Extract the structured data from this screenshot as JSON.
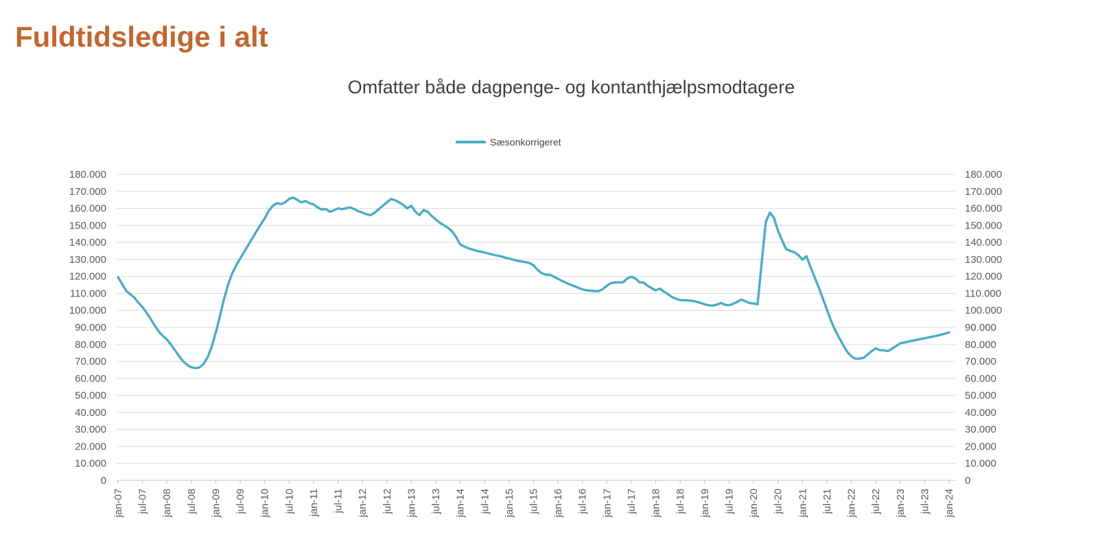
{
  "page": {
    "title": "Fuldtidsledige i alt",
    "title_color": "#C2672F"
  },
  "chart": {
    "title": "Omfatter både dagpenge- og kontanthjælpsmodtagere",
    "legend_label": "Sæsonkorrigeret",
    "line_color": "#4BACC6",
    "grid_color": "#D9D9D9",
    "axis_line_color": "#BFBFBF",
    "axis_text_color": "#595959",
    "y_ticks": [
      "180.000",
      "170.000",
      "160.000",
      "150.000",
      "140.000",
      "130.000",
      "120.000",
      "110.000",
      "100.000",
      "90.000",
      "80.000",
      "70.000",
      "60.000",
      "50.000",
      "40.000",
      "30.000",
      "20.000",
      "10.000",
      "0"
    ],
    "x_ticks": [
      "jan-07",
      "jul-07",
      "jan-08",
      "jul-08",
      "jan-09",
      "jul-09",
      "jan-10",
      "jul-10",
      "jan-11",
      "jul-11",
      "jan-12",
      "jul-12",
      "jan-13",
      "jul-13",
      "jan-14",
      "jul-14",
      "jan-15",
      "jul-15",
      "jan-16",
      "jul-16",
      "jan-17",
      "jul-17",
      "jan-18",
      "jul-18",
      "jan-19",
      "jul-19",
      "jan-20",
      "jul-20",
      "jan-21",
      "jul-21",
      "jan-22",
      "jul-22",
      "jan-23",
      "jul-23",
      "jan-24"
    ]
  },
  "chart_data": {
    "type": "line",
    "title": "Omfatter både dagpenge- og kontanthjælpsmodtagere",
    "xlabel": "",
    "ylabel": "",
    "ylim": [
      0,
      180000
    ],
    "y_tick_step": 10000,
    "grid": "horizontal",
    "legend_position": "top-center",
    "x_start": "jan-2007",
    "x_end": "jan-2024",
    "x_frequency": "monthly",
    "x_tick_interval_months": 6,
    "series": [
      {
        "name": "Sæsonkorrigeret",
        "color": "#4BACC6",
        "values": [
          119500,
          115500,
          111500,
          109500,
          107500,
          104500,
          102000,
          98500,
          95000,
          91000,
          87500,
          85000,
          82800,
          79800,
          76500,
          73000,
          70000,
          67800,
          66500,
          66000,
          66400,
          68500,
          72500,
          78500,
          87000,
          96500,
          106500,
          115000,
          121500,
          126500,
          130500,
          134500,
          138500,
          142500,
          146500,
          150500,
          154000,
          158500,
          161500,
          163000,
          162500,
          163500,
          165500,
          166300,
          165000,
          163500,
          164300,
          163000,
          162300,
          160500,
          159300,
          159500,
          158000,
          158800,
          160000,
          159500,
          160000,
          160500,
          159500,
          158300,
          157500,
          156500,
          156000,
          157500,
          159500,
          161500,
          163500,
          165500,
          164800,
          163500,
          162000,
          160000,
          161500,
          158000,
          156000,
          159000,
          158000,
          155500,
          153500,
          151500,
          150000,
          148500,
          146500,
          143000,
          138800,
          137500,
          136500,
          135800,
          135000,
          134500,
          134000,
          133300,
          132800,
          132200,
          131800,
          131000,
          130500,
          129800,
          129200,
          128800,
          128400,
          127800,
          126500,
          123800,
          121800,
          121000,
          121000,
          119800,
          118500,
          117300,
          116200,
          115200,
          114200,
          113200,
          112300,
          111800,
          111500,
          111300,
          111300,
          112500,
          114500,
          116000,
          116400,
          116400,
          116500,
          118800,
          119700,
          118700,
          116500,
          116400,
          114400,
          113000,
          111700,
          112800,
          111000,
          109500,
          107800,
          106800,
          106000,
          106000,
          105800,
          105600,
          105000,
          104400,
          103500,
          103000,
          102800,
          103400,
          104300,
          103300,
          103000,
          103800,
          105000,
          106300,
          105300,
          104300,
          104000,
          103600,
          128000,
          152000,
          157500,
          154500,
          146800,
          141300,
          136000,
          135000,
          134200,
          132500,
          129800,
          131800,
          125300,
          119500,
          113500,
          107000,
          100500,
          94000,
          88500,
          84000,
          79500,
          75500,
          73000,
          71500,
          71600,
          72100,
          74000,
          76000,
          77600,
          76600,
          76500,
          76000,
          77500,
          79000,
          80600,
          81100,
          81600,
          82100,
          82600,
          83100,
          83600,
          84100,
          84600,
          85100,
          85700,
          86300,
          87000
        ]
      }
    ]
  }
}
